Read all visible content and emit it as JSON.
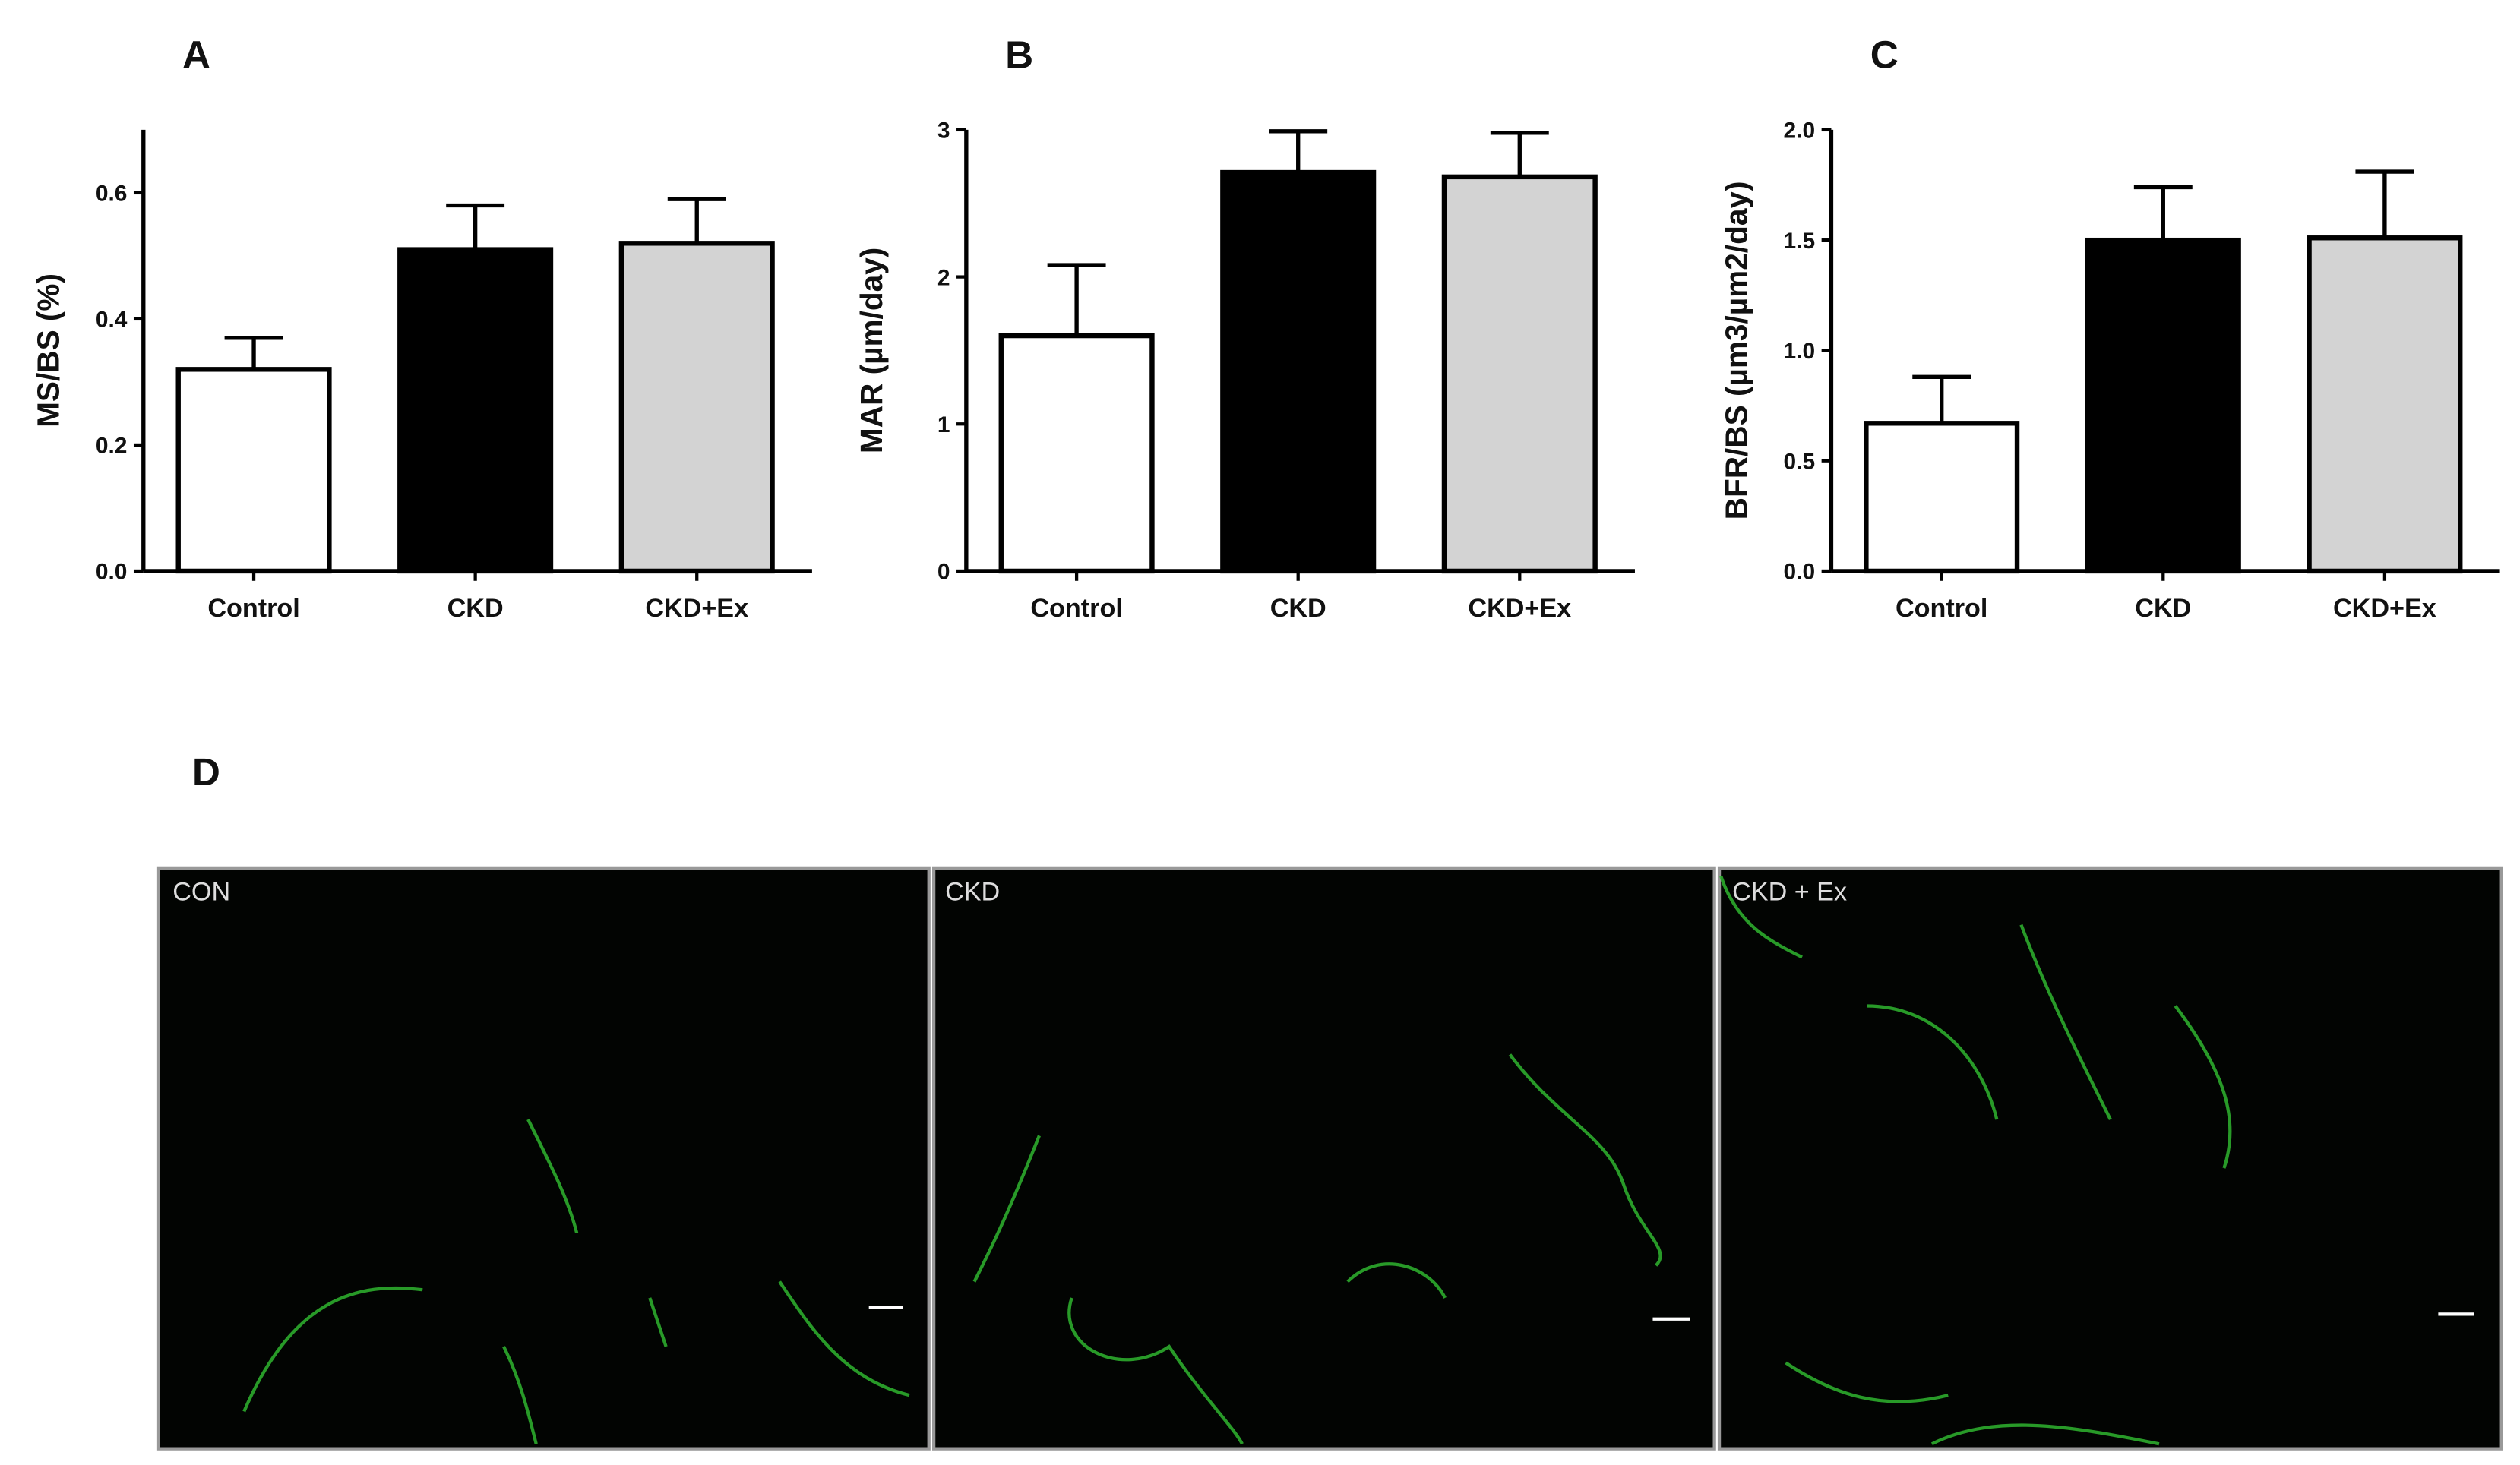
{
  "chart_data": [
    {
      "type": "bar",
      "panel_label": "A",
      "y_label": "MS/BS (%)",
      "categories": [
        "Control",
        "CKD",
        "CKD+Ex"
      ],
      "values": [
        0.32,
        0.51,
        0.52
      ],
      "errors": [
        0.05,
        0.07,
        0.07
      ],
      "colors": [
        "#ffffff",
        "#000000",
        "#d3d3d3"
      ],
      "ylim": [
        0,
        0.7
      ],
      "yticks": [
        {
          "value": 0,
          "label": "0.0"
        },
        0.2,
        0.4,
        0.6
      ]
    },
    {
      "type": "bar",
      "panel_label": "B",
      "y_label": "MAR (µm/day)",
      "categories": [
        "Control",
        "CKD",
        "CKD+Ex"
      ],
      "values": [
        1.6,
        2.71,
        2.68
      ],
      "errors": [
        0.48,
        0.28,
        0.3
      ],
      "colors": [
        "#ffffff",
        "#000000",
        "#d3d3d3"
      ],
      "ylim": [
        0,
        3
      ],
      "yticks": [
        0,
        1,
        2,
        3
      ]
    },
    {
      "type": "bar",
      "panel_label": "C",
      "y_label": "BFR/BS (µm3/µm2/day)",
      "categories": [
        "Control",
        "CKD",
        "CKD+Ex"
      ],
      "values": [
        0.67,
        1.5,
        1.51
      ],
      "errors": [
        0.21,
        0.24,
        0.3
      ],
      "colors": [
        "#ffffff",
        "#000000",
        "#d3d3d3"
      ],
      "ylim": [
        0,
        2
      ],
      "yticks": [
        {
          "value": 0,
          "label": "0.0"
        },
        0.5,
        {
          "value": 1,
          "label": "1.0"
        },
        1.5,
        {
          "value": 2,
          "label": "2.0"
        }
      ]
    }
  ],
  "panel_d": {
    "label": "D",
    "images": [
      "CON",
      "CKD",
      "CKD + Ex"
    ]
  }
}
